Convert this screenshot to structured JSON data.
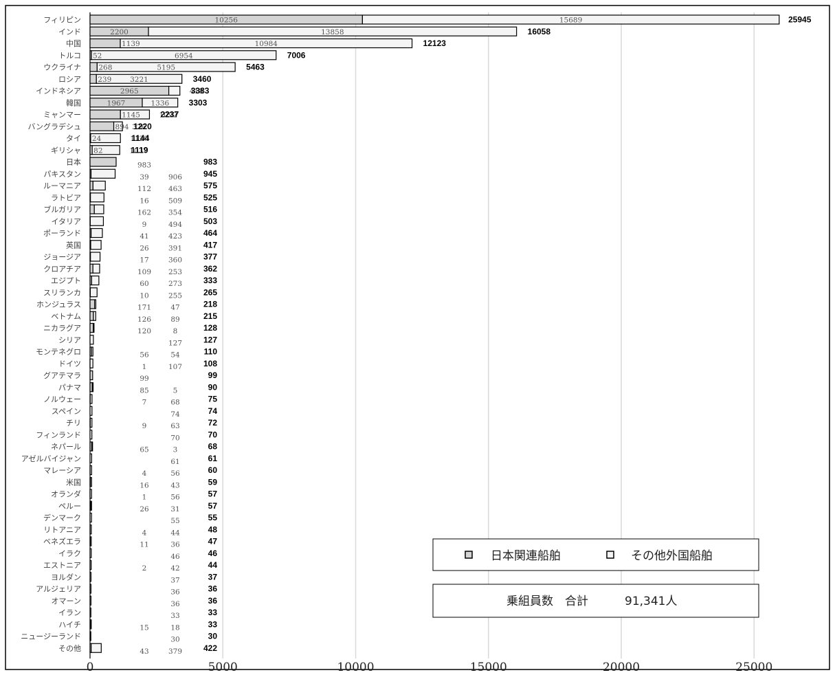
{
  "chart_data": {
    "type": "bar",
    "orientation": "horizontal",
    "stacked": true,
    "title": "",
    "xlabel": "",
    "ylabel": "",
    "xlim": [
      0,
      26000
    ],
    "x_ticks": [
      "0",
      "5000",
      "10000",
      "15000",
      "20000",
      "25000"
    ],
    "grid": "vertical",
    "legend": {
      "position": "bottom-right",
      "entries": [
        "日本関連船舶",
        "その他外国船舶"
      ]
    },
    "summary_box": {
      "label": "乗組員数　合計",
      "value": "91,341人"
    },
    "colors": {
      "japan": "#d4d4d4",
      "other": "#f4f4f4",
      "grid": "#d9d9d9"
    },
    "categories": [
      "フィリピン",
      "インド",
      "中国",
      "トルコ",
      "ウクライナ",
      "ロシア",
      "インドネシア",
      "韓国",
      "ミャンマー",
      "バングラデシュ",
      "タイ",
      "ギリシャ",
      "日本",
      "パキスタン",
      "ルーマニア",
      "ラトビア",
      "ブルガリア",
      "イタリア",
      "ポーランド",
      "英国",
      "ジョージア",
      "クロアチア",
      "エジプト",
      "スリランカ",
      "ホンジュラス",
      "ベトナム",
      "ニカラグア",
      "シリア",
      "モンテネグロ",
      "ドイツ",
      "グアテマラ",
      "パナマ",
      "ノルウェー",
      "スペイン",
      "チリ",
      "フィンランド",
      "ネパール",
      "アゼルバイジャン",
      "マレーシア",
      "米国",
      "オランダ",
      "ペルー",
      "デンマーク",
      "リトアニア",
      "ベネズエラ",
      "イラク",
      "エストニア",
      "ヨルダン",
      "アルジェリア",
      "オマーン",
      "イラン",
      "ハイチ",
      "ニュージーランド",
      "その他"
    ],
    "series": [
      {
        "name": "日本関連船舶",
        "values": [
          10256,
          2200,
          1139,
          52,
          268,
          239,
          2965,
          1967,
          1145,
          894,
          24,
          82,
          983,
          39,
          112,
          16,
          162,
          9,
          41,
          26,
          17,
          109,
          60,
          10,
          171,
          126,
          120,
          null,
          56,
          1,
          99,
          85,
          7,
          null,
          9,
          null,
          65,
          null,
          4,
          16,
          1,
          26,
          null,
          4,
          11,
          null,
          2,
          null,
          null,
          null,
          null,
          15,
          null,
          43
        ]
      },
      {
        "name": "その他外国船舶",
        "values": [
          15689,
          13858,
          10984,
          6954,
          5195,
          3221,
          418,
          1336,
          1092,
          326,
          1120,
          1037,
          null,
          906,
          463,
          509,
          354,
          494,
          423,
          391,
          360,
          253,
          273,
          255,
          47,
          89,
          8,
          127,
          54,
          107,
          null,
          5,
          68,
          74,
          63,
          70,
          3,
          61,
          56,
          43,
          56,
          31,
          55,
          44,
          36,
          46,
          42,
          37,
          36,
          36,
          33,
          18,
          30,
          379
        ]
      }
    ],
    "totals": [
      25945,
      16058,
      12123,
      7006,
      5463,
      3460,
      3383,
      3303,
      2237,
      1220,
      1144,
      1119,
      983,
      945,
      575,
      525,
      516,
      503,
      464,
      417,
      377,
      362,
      333,
      265,
      218,
      215,
      128,
      127,
      110,
      108,
      99,
      90,
      75,
      74,
      72,
      70,
      68,
      61,
      60,
      59,
      57,
      57,
      55,
      48,
      47,
      46,
      44,
      37,
      36,
      36,
      33,
      33,
      30,
      422
    ]
  }
}
